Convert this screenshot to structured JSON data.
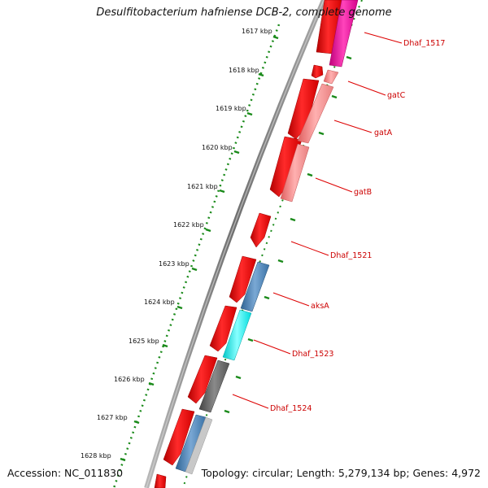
{
  "title": "Desulfitobacterium hafniense DCB-2, complete genome",
  "footer": {
    "accession": "Accession: NC_011830",
    "topology": "Topology: circular; Length: 5,279,134 bp; Genes: 4,972"
  },
  "scale_ticks": [
    "1617 kbp",
    "1618 kbp",
    "1619 kbp",
    "1620 kbp",
    "1621 kbp",
    "1622 kbp",
    "1623 kbp",
    "1624 kbp",
    "1625 kbp",
    "1626 kbp",
    "1627 kbp",
    "1628 kbp"
  ],
  "gene_labels": [
    "Dhaf_1517",
    "gatC",
    "gatA",
    "gatB",
    "Dhaf_1521",
    "aksA",
    "Dhaf_1523",
    "Dhaf_1524"
  ],
  "colors": {
    "cds": "#ee0000",
    "dhaf_1517": "#ee0099",
    "gat": "#f08080",
    "aksA": "#4a82b4",
    "dhaf_1523": "#00eeee",
    "dhaf_1524": "#666666",
    "bottom_gene": "#5a8ab8",
    "label_line": "#dd0000",
    "dots": "#1a8a1a",
    "backbone": "#808080"
  }
}
